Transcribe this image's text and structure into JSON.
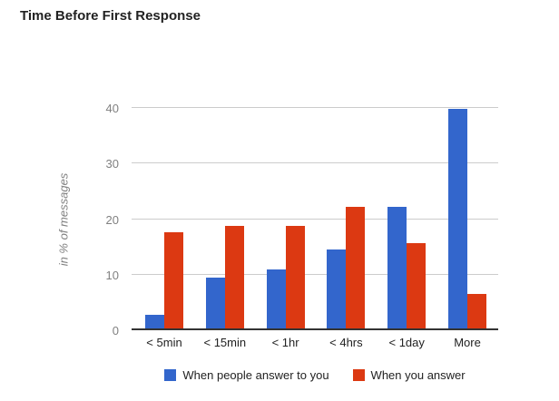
{
  "chart_data": {
    "type": "bar",
    "title": "Time Before First Response",
    "categories": [
      "< 5min",
      "< 15min",
      "< 1hr",
      "< 4hrs",
      "< 1day",
      "More"
    ],
    "series": [
      {
        "name": "When people answer to you",
        "color": "#3366CC",
        "values": [
          2.8,
          9.4,
          11.0,
          14.6,
          22.2,
          39.8
        ]
      },
      {
        "name": "When you answer",
        "color": "#DC3912",
        "values": [
          17.7,
          18.8,
          18.8,
          22.2,
          15.6,
          6.6
        ]
      }
    ],
    "xlabel": "",
    "ylabel": "in % of messages",
    "yticks": [
      0,
      10,
      20,
      30,
      40
    ],
    "ylim": [
      0,
      40
    ],
    "grid": true,
    "legend_position": "bottom",
    "colors": {
      "gridline": "#CCCCCC",
      "axis_line": "#333333",
      "tick_label": "#808080",
      "category_label": "#222222",
      "title": "#222222",
      "background": "#FFFFFF"
    }
  }
}
